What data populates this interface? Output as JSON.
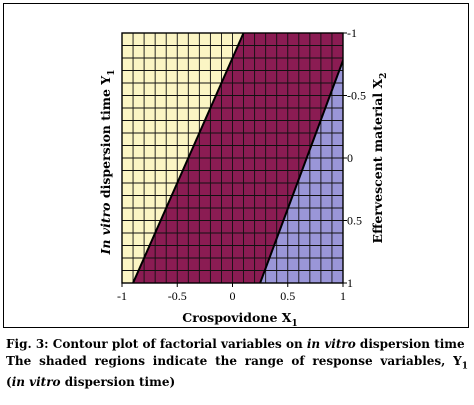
{
  "chart_data": {
    "type": "heatmap",
    "subtype": "contour",
    "x_axis": {
      "label": "Crospovidone X",
      "label_subscript": "1",
      "range": [
        -1,
        1
      ],
      "ticks": [
        -1,
        -0.5,
        0,
        0.5,
        1
      ],
      "tick_labels": [
        "-1",
        "-0.5",
        "0",
        "0.5",
        "1"
      ]
    },
    "y_axis": {
      "label_italic": "In vitro",
      "label_rest": " dispersion time Y",
      "label_subscript": "1",
      "side": "left"
    },
    "y2_axis": {
      "label": "Effervescent material X",
      "label_subscript": "2",
      "side": "right",
      "range": [
        -1,
        1
      ],
      "ticks": [
        -1,
        -0.5,
        0,
        0.5,
        1
      ],
      "tick_labels": [
        "-1",
        "-0.5",
        "0",
        "0.5",
        "1"
      ],
      "tick_labels_displayed": [
        "-1",
        "-0.5",
        "0",
        "0.5",
        "1"
      ]
    },
    "grid": true,
    "grid_divisions": 20,
    "boundaries": [
      {
        "points": [
          [
            -0.9,
            1
          ],
          [
            0.1,
            -1
          ]
        ]
      },
      {
        "points": [
          [
            0.25,
            1
          ],
          [
            1,
            -0.78
          ]
        ]
      }
    ],
    "regions": [
      {
        "color": "#fbf5c4",
        "position": "upper-left"
      },
      {
        "color": "#8b1c53",
        "position": "middle band"
      },
      {
        "color": "#9a96d8",
        "position": "lower-right"
      }
    ]
  },
  "caption": {
    "line1_prefix": "Fig. 3: Contour plot of factorial variables on ",
    "line1_italic": "in vitro",
    "line1_suffix": " dispersion time",
    "line2": "The shaded regions indicate the range of response variables, Y",
    "line2_subscript": "1",
    "line3_open": "(",
    "line3_italic": "in vitro",
    "line3_suffix": " dispersion time)"
  }
}
